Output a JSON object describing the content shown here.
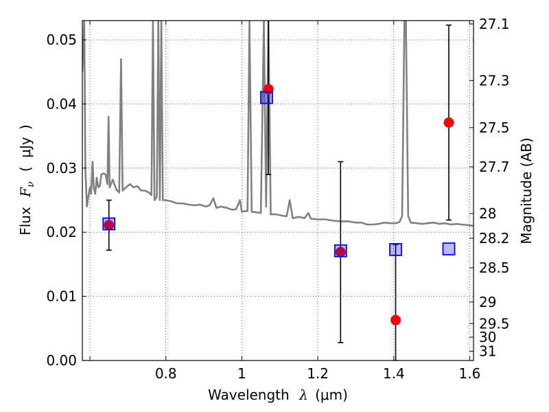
{
  "chart_data": {
    "type": "scatter",
    "xlabel": {
      "prefix": "Wavelength",
      "symbol": "λ",
      "unit_open": "(",
      "unit": "μm",
      "unit_close": ")"
    },
    "ylabel": {
      "prefix": "Flux",
      "symbol": "F",
      "subscript": "ν",
      "unit_open": "(",
      "unit": "μJy",
      "unit_close": ")"
    },
    "y2label": "Magnitude (AB)",
    "xlim": [
      0.58,
      1.61
    ],
    "ylim": [
      0.0,
      0.053
    ],
    "xticks": [
      {
        "value": 0.6,
        "label": ""
      },
      {
        "value": 0.8,
        "label": "0.8"
      },
      {
        "value": 1.0,
        "label": "1"
      },
      {
        "value": 1.2,
        "label": "1.2"
      },
      {
        "value": 1.4,
        "label": "1.4"
      },
      {
        "value": 1.6,
        "label": "1.6"
      }
    ],
    "yticks": [
      {
        "value": 0.0,
        "label": "0.00"
      },
      {
        "value": 0.01,
        "label": "0.01"
      },
      {
        "value": 0.02,
        "label": "0.02"
      },
      {
        "value": 0.03,
        "label": "0.03"
      },
      {
        "value": 0.04,
        "label": "0.04"
      },
      {
        "value": 0.05,
        "label": "0.05"
      }
    ],
    "y2ticks": [
      {
        "value": 27.1,
        "label": "27.1"
      },
      {
        "value": 27.3,
        "label": "27.3"
      },
      {
        "value": 27.5,
        "label": "27.5"
      },
      {
        "value": 27.7,
        "label": "27.7"
      },
      {
        "value": 28.0,
        "label": "28"
      },
      {
        "value": 28.2,
        "label": "28.2"
      },
      {
        "value": 28.5,
        "label": "28.5"
      },
      {
        "value": 29.0,
        "label": "29"
      },
      {
        "value": 29.5,
        "label": "29.5"
      },
      {
        "value": 30.0,
        "label": "30"
      },
      {
        "value": 31.0,
        "label": "31"
      }
    ],
    "grid": true,
    "observed_points": [
      {
        "x": 0.65,
        "y": 0.0211,
        "yerr_low": 0.0172,
        "yerr_high": 0.025
      },
      {
        "x": 1.07,
        "y": 0.0423,
        "yerr_low": 0.029,
        "yerr_high": 0.054
      },
      {
        "x": 1.26,
        "y": 0.0169,
        "yerr_low": 0.0028,
        "yerr_high": 0.031
      },
      {
        "x": 1.405,
        "y": 0.0063,
        "yerr_low": 0.0,
        "yerr_high": 0.0181
      },
      {
        "x": 1.545,
        "y": 0.0371,
        "yerr_low": 0.0219,
        "yerr_high": 0.0523
      }
    ],
    "model_points": [
      {
        "x": 0.65,
        "y": 0.0213
      },
      {
        "x": 1.065,
        "y": 0.041
      },
      {
        "x": 1.26,
        "y": 0.0171
      },
      {
        "x": 1.405,
        "y": 0.0173
      },
      {
        "x": 1.545,
        "y": 0.0174
      }
    ],
    "spectrum": [
      [
        0.58,
        0.045
      ],
      [
        0.585,
        0.053
      ],
      [
        0.588,
        0.03
      ],
      [
        0.592,
        0.024
      ],
      [
        0.597,
        0.026
      ],
      [
        0.6,
        0.027
      ],
      [
        0.603,
        0.026
      ],
      [
        0.607,
        0.031
      ],
      [
        0.61,
        0.027
      ],
      [
        0.614,
        0.026
      ],
      [
        0.618,
        0.0285
      ],
      [
        0.622,
        0.027
      ],
      [
        0.626,
        0.0272
      ],
      [
        0.63,
        0.029
      ],
      [
        0.636,
        0.0292
      ],
      [
        0.641,
        0.029
      ],
      [
        0.646,
        0.0275
      ],
      [
        0.649,
        0.038
      ],
      [
        0.652,
        0.027
      ],
      [
        0.66,
        0.0282
      ],
      [
        0.67,
        0.0266
      ],
      [
        0.677,
        0.0262
      ],
      [
        0.682,
        0.047
      ],
      [
        0.686,
        0.0265
      ],
      [
        0.695,
        0.027
      ],
      [
        0.705,
        0.0275
      ],
      [
        0.715,
        0.027
      ],
      [
        0.725,
        0.0272
      ],
      [
        0.735,
        0.0265
      ],
      [
        0.745,
        0.0265
      ],
      [
        0.755,
        0.0262
      ],
      [
        0.762,
        0.0258
      ],
      [
        0.766,
        0.053
      ],
      [
        0.77,
        0.025
      ],
      [
        0.776,
        0.0255
      ],
      [
        0.78,
        0.053
      ],
      [
        0.784,
        0.025
      ],
      [
        0.788,
        0.053
      ],
      [
        0.792,
        0.025
      ],
      [
        0.8,
        0.025
      ],
      [
        0.815,
        0.0248
      ],
      [
        0.83,
        0.0245
      ],
      [
        0.845,
        0.0245
      ],
      [
        0.86,
        0.0243
      ],
      [
        0.875,
        0.0242
      ],
      [
        0.89,
        0.0243
      ],
      [
        0.905,
        0.024
      ],
      [
        0.915,
        0.0242
      ],
      [
        0.925,
        0.0253
      ],
      [
        0.933,
        0.0238
      ],
      [
        0.945,
        0.024
      ],
      [
        0.96,
        0.0238
      ],
      [
        0.975,
        0.0235
      ],
      [
        0.985,
        0.0236
      ],
      [
        0.995,
        0.025
      ],
      [
        1.0,
        0.0232
      ],
      [
        1.008,
        0.0233
      ],
      [
        1.015,
        0.0233
      ],
      [
        1.02,
        0.053
      ],
      [
        1.026,
        0.0232
      ],
      [
        1.04,
        0.0231
      ],
      [
        1.05,
        0.023
      ],
      [
        1.058,
        0.053
      ],
      [
        1.064,
        0.024
      ],
      [
        1.07,
        0.053
      ],
      [
        1.076,
        0.0228
      ],
      [
        1.09,
        0.0228
      ],
      [
        1.105,
        0.0226
      ],
      [
        1.118,
        0.0225
      ],
      [
        1.126,
        0.025
      ],
      [
        1.134,
        0.0222
      ],
      [
        1.15,
        0.0224
      ],
      [
        1.165,
        0.0222
      ],
      [
        1.175,
        0.023
      ],
      [
        1.182,
        0.0221
      ],
      [
        1.2,
        0.022
      ],
      [
        1.22,
        0.022
      ],
      [
        1.24,
        0.0218
      ],
      [
        1.26,
        0.0217
      ],
      [
        1.28,
        0.0217
      ],
      [
        1.3,
        0.0215
      ],
      [
        1.315,
        0.0215
      ],
      [
        1.33,
        0.0212
      ],
      [
        1.345,
        0.0212
      ],
      [
        1.36,
        0.0213
      ],
      [
        1.375,
        0.0215
      ],
      [
        1.39,
        0.0214
      ],
      [
        1.405,
        0.0214
      ],
      [
        1.415,
        0.0216
      ],
      [
        1.422,
        0.0225
      ],
      [
        1.428,
        0.053
      ],
      [
        1.432,
        0.053
      ],
      [
        1.438,
        0.0225
      ],
      [
        1.445,
        0.0215
      ],
      [
        1.46,
        0.0214
      ],
      [
        1.475,
        0.0213
      ],
      [
        1.49,
        0.0214
      ],
      [
        1.505,
        0.0215
      ],
      [
        1.52,
        0.0213
      ],
      [
        1.535,
        0.0214
      ],
      [
        1.55,
        0.0212
      ],
      [
        1.565,
        0.0213
      ],
      [
        1.58,
        0.0212
      ],
      [
        1.595,
        0.0211
      ],
      [
        1.61,
        0.021
      ]
    ],
    "colors": {
      "spectrum": "#808080",
      "observed": "#ff0000",
      "model": "#0000ff",
      "errorbar": "#000000"
    }
  }
}
